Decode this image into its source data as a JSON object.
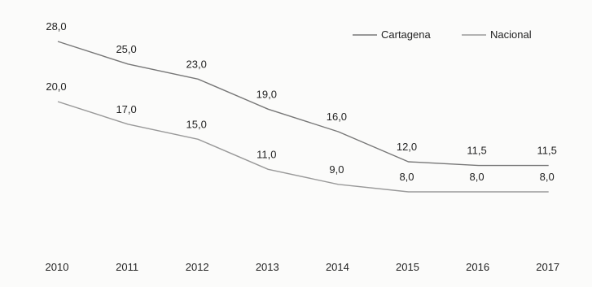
{
  "chart_data": {
    "type": "line",
    "categories": [
      "2010",
      "2011",
      "2012",
      "2013",
      "2014",
      "2015",
      "2016",
      "2017"
    ],
    "series": [
      {
        "name": "Cartagena",
        "values": [
          28.0,
          25.0,
          23.0,
          19.0,
          16.0,
          12.0,
          11.5,
          11.5
        ],
        "labels": [
          "28,0",
          "25,0",
          "23,0",
          "19,0",
          "16,0",
          "12,0",
          "11,5",
          "11,5"
        ],
        "color": "#777777"
      },
      {
        "name": "Nacional",
        "values": [
          20.0,
          17.0,
          15.0,
          11.0,
          9.0,
          8.0,
          8.0,
          8.0
        ],
        "labels": [
          "20,0",
          "17,0",
          "15,0",
          "11,0",
          "9,0",
          "8,0",
          "8,0",
          "8,0"
        ],
        "color": "#999999"
      }
    ],
    "title": "",
    "xlabel": "",
    "ylabel": "",
    "ylim": [
      0,
      28
    ],
    "grid": false,
    "legend": "top-right"
  }
}
